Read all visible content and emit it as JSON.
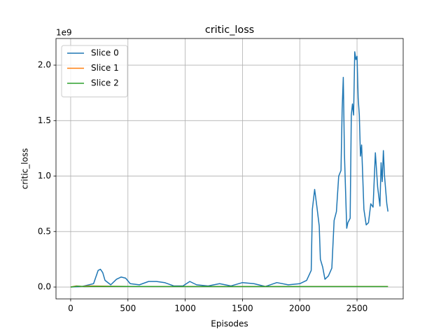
{
  "chart_data": {
    "type": "line",
    "title": "critic_loss",
    "xlabel": "Episodes",
    "ylabel": "critic_loss",
    "y_offset_text": "1e9",
    "xlim": [
      -128,
      2903
    ],
    "ylim": [
      -0.107,
      2.24
    ],
    "xticks": [
      0,
      500,
      1000,
      1500,
      2000,
      2500
    ],
    "yticks": [
      {
        "value": 0,
        "label": "0.0"
      },
      {
        "value": 0.5,
        "label": "0.5"
      },
      {
        "value": 1,
        "label": "1.0"
      },
      {
        "value": 1.5,
        "label": "1.5"
      },
      {
        "value": 2,
        "label": "2.0"
      }
    ],
    "grid": true,
    "legend": "upper left",
    "series": [
      {
        "name": "Slice 0",
        "color": "#1f77b4",
        "x": [
          0,
          100,
          200,
          240,
          260,
          280,
          300,
          350,
          400,
          440,
          480,
          520,
          600,
          680,
          750,
          820,
          900,
          980,
          1040,
          1100,
          1200,
          1300,
          1400,
          1500,
          1600,
          1700,
          1800,
          1900,
          2000,
          2060,
          2100,
          2110,
          2130,
          2150,
          2170,
          2180,
          2200,
          2220,
          2250,
          2280,
          2300,
          2320,
          2340,
          2360,
          2370,
          2380,
          2390,
          2410,
          2420,
          2440,
          2450,
          2460,
          2470,
          2480,
          2490,
          2500,
          2510,
          2520,
          2530,
          2540,
          2560,
          2580,
          2600,
          2620,
          2640,
          2660,
          2680,
          2700,
          2710,
          2720,
          2730,
          2740,
          2760,
          2770
        ],
        "values": [
          0.0,
          0.005,
          0.03,
          0.15,
          0.16,
          0.13,
          0.06,
          0.02,
          0.07,
          0.09,
          0.08,
          0.03,
          0.02,
          0.05,
          0.05,
          0.04,
          0.01,
          0.01,
          0.05,
          0.02,
          0.01,
          0.03,
          0.01,
          0.04,
          0.03,
          0.005,
          0.04,
          0.02,
          0.03,
          0.06,
          0.15,
          0.7,
          0.88,
          0.72,
          0.55,
          0.25,
          0.18,
          0.07,
          0.1,
          0.17,
          0.6,
          0.68,
          1.0,
          1.05,
          1.6,
          1.89,
          1.2,
          0.53,
          0.58,
          0.62,
          1.55,
          1.65,
          1.55,
          2.12,
          2.05,
          2.08,
          1.7,
          1.55,
          1.18,
          1.28,
          0.7,
          0.56,
          0.58,
          0.75,
          0.72,
          1.21,
          0.9,
          0.73,
          1.12,
          0.95,
          1.23,
          1.0,
          0.75,
          0.68
        ]
      },
      {
        "name": "Slice 1",
        "color": "#ff7f0e",
        "x": [
          0,
          50,
          100,
          150,
          500,
          2770
        ],
        "values": [
          0.0,
          0.01,
          0.005,
          0.01,
          0.005,
          0.005
        ]
      },
      {
        "name": "Slice 2",
        "color": "#2ca02c",
        "x": [
          0,
          60,
          120,
          200,
          1000,
          2770
        ],
        "values": [
          0.0,
          0.008,
          0.004,
          0.006,
          0.004,
          0.004
        ]
      }
    ]
  }
}
